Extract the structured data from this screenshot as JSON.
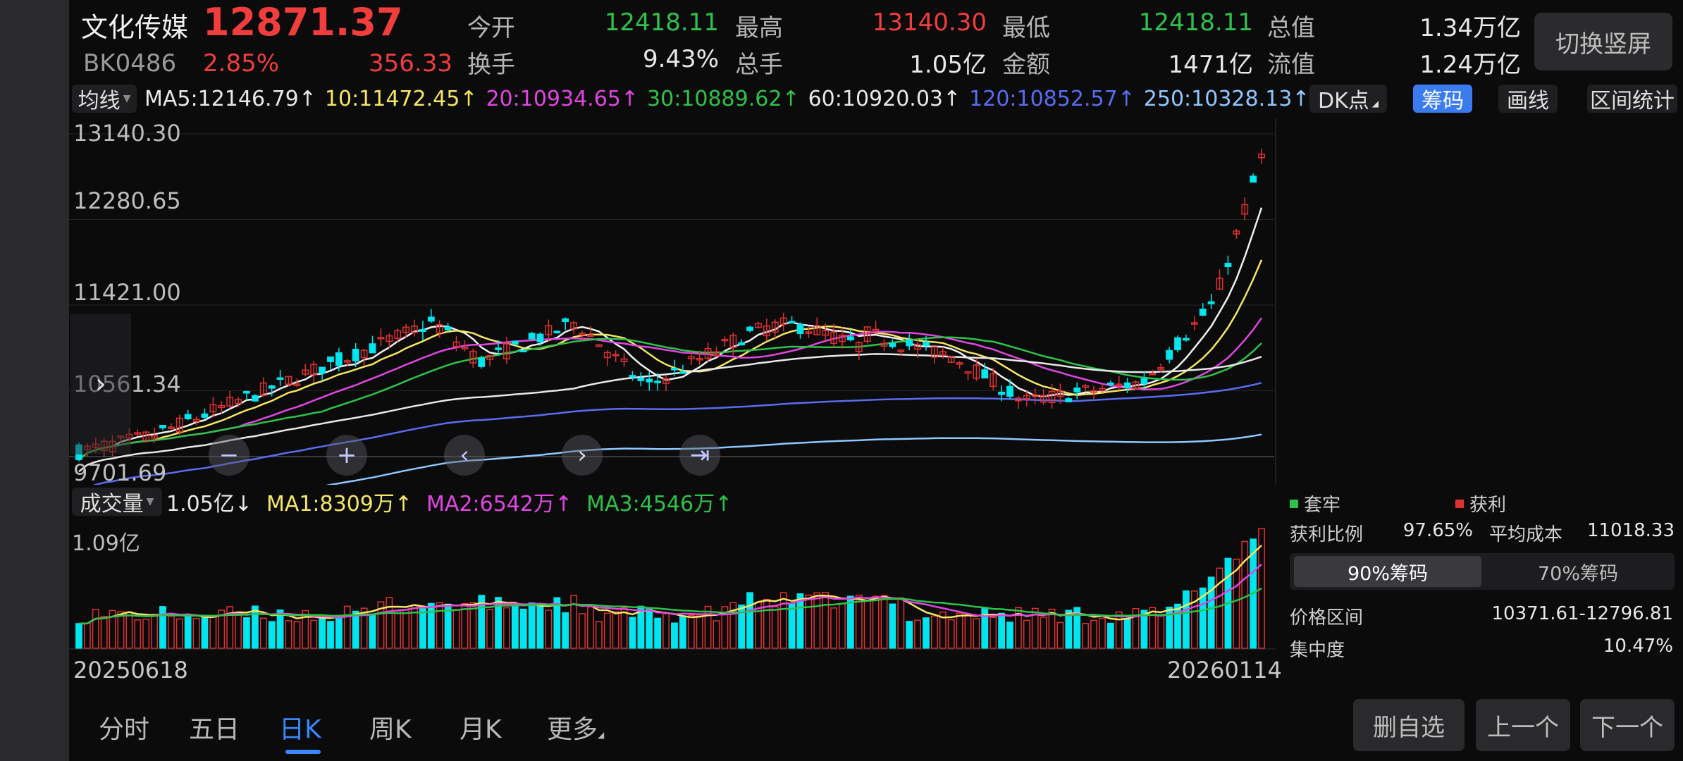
{
  "header": {
    "name": "文化传媒",
    "price": "12871.37",
    "code": "BK0486",
    "change_pct": "2.85%",
    "change_amt": "356.33",
    "stats": [
      {
        "label": "今开",
        "value": "12418.11",
        "color": "#2ec24a"
      },
      {
        "label": "最高",
        "value": "13140.30",
        "color": "#f23d3d"
      },
      {
        "label": "最低",
        "value": "12418.11",
        "color": "#2ec24a"
      },
      {
        "label": "总值",
        "value": "1.34万亿",
        "color": "#e8e8e8"
      },
      {
        "label": "换手",
        "value": "9.43%",
        "color": "#e8e8e8"
      },
      {
        "label": "总手",
        "value": "1.05亿",
        "color": "#e8e8e8"
      },
      {
        "label": "金额",
        "value": "1471亿",
        "color": "#e8e8e8"
      },
      {
        "label": "流值",
        "value": "1.24万亿",
        "color": "#e8e8e8"
      }
    ],
    "switch_label": "切换竖屏"
  },
  "ma_bar": {
    "selector": "均线",
    "items": [
      {
        "text": "MA5:12146.79↑",
        "color": "#e8e8e8"
      },
      {
        "text": "10:11472.45↑",
        "color": "#f5e663"
      },
      {
        "text": "20:10934.65↑",
        "color": "#e046e0"
      },
      {
        "text": "30:10889.62↑",
        "color": "#2ec24a"
      },
      {
        "text": "60:10920.03↑",
        "color": "#e8e8e8"
      },
      {
        "text": "120:10852.57↑",
        "color": "#5a6cf0"
      },
      {
        "text": "250:10328.13↑",
        "color": "#8fc8ff"
      }
    ],
    "dk_label": "DK点",
    "chips_label": "筹码",
    "draw_label": "画线",
    "range_label": "区间统计"
  },
  "price_axis": {
    "labels": [
      "13140.30",
      "12280.65",
      "11421.00",
      "10561.34",
      "9701.69"
    ]
  },
  "volume_bar": {
    "selector": "成交量",
    "current": "1.05亿↓",
    "items": [
      {
        "text": "MA1:8309万↑",
        "color": "#f5e663"
      },
      {
        "text": "MA2:6542万↑",
        "color": "#e046e0"
      },
      {
        "text": "MA3:4546万↑",
        "color": "#2ec24a"
      }
    ],
    "max_label": "1.09亿"
  },
  "dates": {
    "start": "20250618",
    "end": "20260114"
  },
  "chip_panel": {
    "legend_trapped": "套牢",
    "legend_profit": "获利",
    "profit_ratio_label": "获利比例",
    "profit_ratio": "97.65%",
    "avg_cost_label": "平均成本",
    "avg_cost": "11018.33",
    "tab_90": "90%筹码",
    "tab_70": "70%筹码",
    "price_range_label": "价格区间",
    "price_range": "10371.61-12796.81",
    "concentration_label": "集中度",
    "concentration": "10.47%"
  },
  "nav": {
    "tabs": [
      "分时",
      "五日",
      "日K",
      "周K",
      "月K",
      "更多"
    ],
    "active": "日K"
  },
  "buttons": {
    "remove": "删自选",
    "prev": "上一个",
    "next": "下一个"
  },
  "controls": [
    "zoom-out",
    "zoom-in",
    "prev",
    "next",
    "reset"
  ],
  "chart_data": {
    "type": "candlestick",
    "x_start": "20250618",
    "x_end": "20260114",
    "ylim": [
      9701.69,
      13140.3
    ],
    "y_ticks": [
      13140.3,
      12280.65,
      11421.0,
      10561.34,
      9701.69
    ],
    "volume_max": "1.09亿",
    "colors": {
      "up": "#e03131",
      "down": "#00e5ee"
    }
  }
}
